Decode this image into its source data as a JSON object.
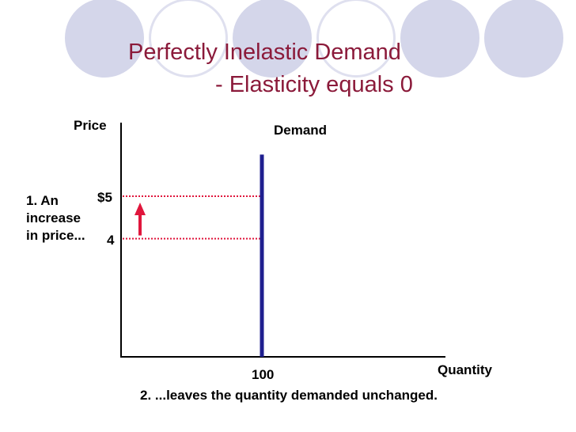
{
  "title": "Perfectly Inelastic Demand",
  "subtitle": "- Elasticity equals 0",
  "chart_data": {
    "type": "line",
    "ylabel": "Price",
    "xlabel": "Quantity",
    "series": [
      {
        "name": "Demand",
        "x": [
          100,
          100
        ],
        "y": [
          0,
          6
        ]
      }
    ],
    "price_ticks": [
      "$5",
      "4"
    ],
    "price_values": [
      5,
      4
    ],
    "quantity_tick": "100",
    "quantity_value": 100,
    "annotations": {
      "increase": [
        "1. An",
        "increase",
        "in price..."
      ],
      "result": "2. ...leaves the quantity demanded unchanged."
    },
    "colors": {
      "demand": "#1f1f8f",
      "guide": "#e0163c",
      "arrow": "#e0163c",
      "axis": "#000000"
    }
  },
  "decor": {
    "circle_fill": "#d4d6ea",
    "circle_ring": "#dfe0ef",
    "title_color": "#8b1a3a"
  }
}
